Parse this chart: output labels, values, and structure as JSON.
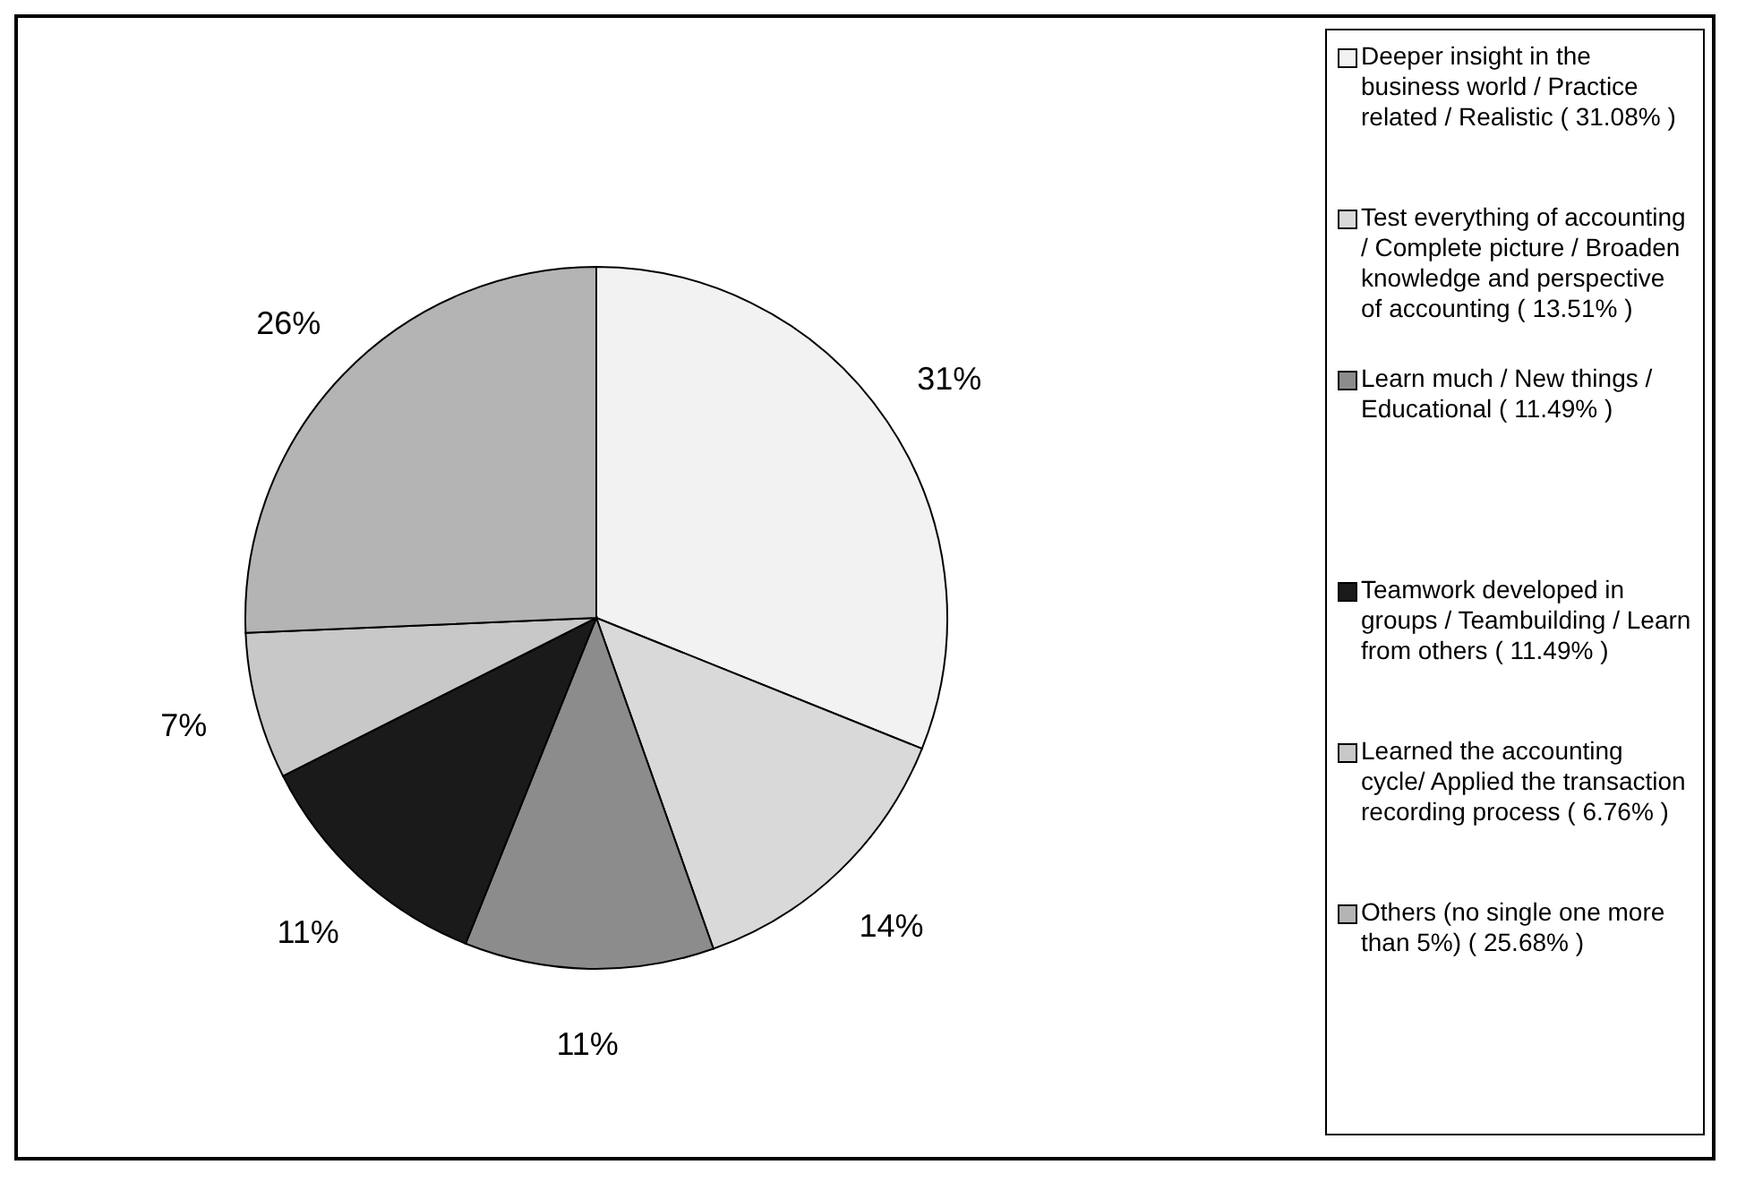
{
  "chart_data": {
    "type": "pie",
    "categories": [
      "Deeper insight in the business world / Practice related / Realistic ( 31.08% )",
      "Test everything of accounting / Complete picture / Broaden knowledge and perspective of accounting ( 13.51% )",
      "Learn much / New things / Educational ( 11.49% )",
      "Teamwork developed in groups / Teambuilding / Learn from others ( 11.49% )",
      "Learned the accounting cycle/ Applied the transaction recording process ( 6.76% )",
      "Others (no single one more than 5%) ( 25.68% )"
    ],
    "values": [
      31.08,
      13.51,
      11.49,
      11.49,
      6.76,
      25.68
    ],
    "value_labels": [
      "31%",
      "14%",
      "11%",
      "11%",
      "7%",
      "26%"
    ],
    "colors": [
      "#f2f2f2",
      "#d9d9d9",
      "#8c8c8c",
      "#1a1a1a",
      "#c8c8c8",
      "#b4b4b4"
    ],
    "legend": "right"
  }
}
